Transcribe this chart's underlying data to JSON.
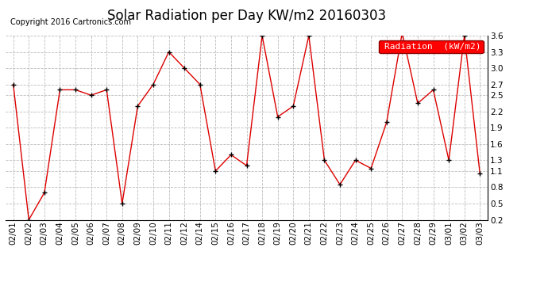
{
  "title": "Solar Radiation per Day KW/m2 20160303",
  "copyright": "Copyright 2016 Cartronics.com",
  "legend_label": "Radiation  (kW/m2)",
  "ylim": [
    0.2,
    3.6
  ],
  "yticks": [
    0.2,
    0.5,
    0.8,
    1.1,
    1.3,
    1.6,
    1.9,
    2.2,
    2.5,
    2.7,
    3.0,
    3.3,
    3.6
  ],
  "background_color": "#ffffff",
  "plot_bg_color": "#ffffff",
  "grid_color": "#bbbbbb",
  "line_color": "#dd0000",
  "marker_color": "#000000",
  "dates": [
    "02/01",
    "02/02",
    "02/03",
    "02/04",
    "02/05",
    "02/06",
    "02/07",
    "02/08",
    "02/09",
    "02/10",
    "02/11",
    "02/12",
    "02/14",
    "02/15",
    "02/16",
    "02/17",
    "02/18",
    "02/19",
    "02/20",
    "02/21",
    "02/22",
    "02/23",
    "02/24",
    "02/25",
    "02/26",
    "02/27",
    "02/28",
    "02/29",
    "03/01",
    "03/02",
    "03/03"
  ],
  "values": [
    2.7,
    0.2,
    0.7,
    2.6,
    2.6,
    2.5,
    2.6,
    0.5,
    2.3,
    2.7,
    3.3,
    3.0,
    2.7,
    1.1,
    1.4,
    1.2,
    3.6,
    2.1,
    2.3,
    3.6,
    1.3,
    0.85,
    1.3,
    1.15,
    2.0,
    3.65,
    2.35,
    2.6,
    1.3,
    3.6,
    1.05
  ],
  "title_fontsize": 12,
  "copyright_fontsize": 7,
  "tick_fontsize": 7.5,
  "legend_fontsize": 8
}
